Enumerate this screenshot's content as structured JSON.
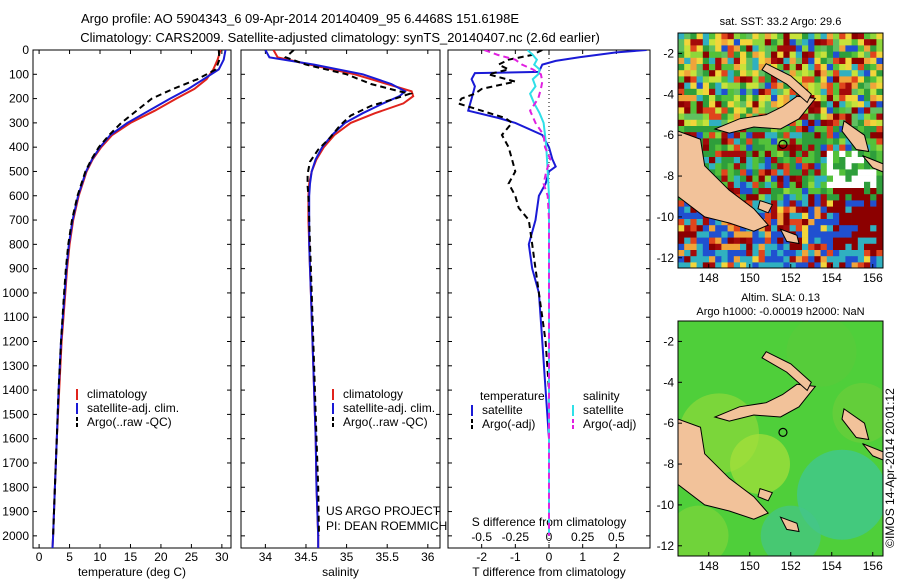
{
  "header": {
    "line1": "Argo profile: AO 5904343_6 09-Apr-2014 20140409_95 6.4468S 151.6198E",
    "line2": "Climatology: CARS2009. Satellite-adjusted climatology: synTS_20140407.nc (2.6d earlier)"
  },
  "colors": {
    "climatology": "#e0231c",
    "satellite": "#1a1ad6",
    "argo": "#000000",
    "sat_salinity": "#2fe0e8",
    "argo_salinity": "#e020e0",
    "land": "#f2c29a",
    "sst_map_bg": "#3fb04a",
    "sla_map_bg": "#4fcf3a"
  },
  "depth_axis": {
    "range": [
      0,
      2050
    ],
    "ticks": [
      0,
      100,
      200,
      300,
      400,
      500,
      600,
      700,
      800,
      900,
      1000,
      1100,
      1200,
      1300,
      1400,
      1500,
      1600,
      1700,
      1800,
      1900,
      2000
    ],
    "labels": [
      "0",
      "100",
      "200",
      "300",
      "400",
      "500",
      "600",
      "700",
      "800",
      "900",
      "1000",
      "1100",
      "1200",
      "1300",
      "1400",
      "1500",
      "1600",
      "1700",
      "1800",
      "1900",
      "2000"
    ]
  },
  "chart_data": [
    {
      "type": "line",
      "title": "",
      "xlabel": "temperature (deg C)",
      "ylabel": "",
      "xlim": [
        -1,
        31.5
      ],
      "ylim": [
        2050,
        0
      ],
      "xticks": [
        0,
        5,
        10,
        15,
        20,
        25,
        30
      ],
      "xticklabels": [
        "0",
        "5",
        "10",
        "15",
        "20",
        "25",
        "30"
      ],
      "legend": [
        "climatology",
        "satellite-adj. clim.",
        "Argo(..raw -QC)"
      ],
      "series": [
        {
          "name": "climatology",
          "depth": [
            0,
            40,
            80,
            120,
            160,
            200,
            250,
            300,
            350,
            400,
            450,
            500,
            600,
            700,
            800,
            900,
            1000,
            1200,
            1400,
            1600,
            1800,
            2000,
            2050
          ],
          "values": [
            29.8,
            29.3,
            28.6,
            27.5,
            25.5,
            22.5,
            19.0,
            15.0,
            12.0,
            10.2,
            8.8,
            7.8,
            6.5,
            5.6,
            5.0,
            4.6,
            4.3,
            3.7,
            3.3,
            2.9,
            2.6,
            2.3,
            2.2
          ]
        },
        {
          "name": "satellite-adj. clim.",
          "depth": [
            0,
            40,
            80,
            120,
            160,
            200,
            250,
            300,
            350,
            400,
            450,
            500,
            600,
            700,
            800,
            900,
            1000,
            1200,
            1400,
            1600,
            1800,
            2000,
            2050
          ],
          "values": [
            30.6,
            30.3,
            29.5,
            27.0,
            24.5,
            21.5,
            18.0,
            14.5,
            11.7,
            10.0,
            8.7,
            7.7,
            6.4,
            5.5,
            4.9,
            4.5,
            4.2,
            3.6,
            3.2,
            2.9,
            2.6,
            2.3,
            2.2
          ]
        },
        {
          "name": "Argo(..raw -QC)",
          "depth": [
            0,
            40,
            80,
            120,
            160,
            200,
            250,
            300,
            350,
            400,
            450,
            500,
            600,
            700,
            800,
            900,
            1000,
            1200,
            1400,
            1600,
            1800,
            2000
          ],
          "values": [
            29.5,
            29.6,
            29.0,
            26.0,
            22.0,
            18.5,
            16.0,
            13.5,
            11.5,
            9.8,
            8.6,
            7.6,
            6.3,
            5.4,
            4.8,
            4.4,
            4.1,
            3.6,
            3.2,
            2.9,
            2.6,
            2.3
          ]
        }
      ]
    },
    {
      "type": "line",
      "title": "",
      "xlabel": "salinity",
      "ylabel": "",
      "xlim": [
        33.7,
        36.15
      ],
      "ylim": [
        2050,
        0
      ],
      "xticks": [
        34,
        34.5,
        35,
        35.5,
        36
      ],
      "xticklabels": [
        "34",
        "34.5",
        "35",
        "35.5",
        "36"
      ],
      "legend": [
        "climatology",
        "satellite-adj. clim.",
        "Argo(..raw -QC)"
      ],
      "series": [
        {
          "name": "climatology",
          "depth": [
            0,
            30,
            60,
            100,
            140,
            170,
            190,
            220,
            260,
            300,
            350,
            400,
            450,
            500,
            550,
            600,
            700,
            800,
            900,
            1000,
            1200,
            1400,
            1600,
            1800,
            2000,
            2050
          ],
          "values": [
            34.1,
            34.15,
            34.55,
            35.1,
            35.5,
            35.8,
            35.82,
            35.7,
            35.35,
            35.05,
            34.85,
            34.72,
            34.63,
            34.57,
            34.54,
            34.53,
            34.53,
            34.54,
            34.55,
            34.56,
            34.58,
            34.6,
            34.62,
            34.63,
            34.65,
            34.65
          ]
        },
        {
          "name": "satellite-adj. clim.",
          "depth": [
            0,
            30,
            60,
            100,
            140,
            170,
            190,
            220,
            260,
            300,
            350,
            400,
            450,
            500,
            550,
            600,
            700,
            800,
            900,
            1000,
            1200,
            1400,
            1600,
            1800,
            2000,
            2050
          ],
          "values": [
            34.0,
            34.05,
            34.6,
            35.2,
            35.55,
            35.72,
            35.65,
            35.45,
            35.2,
            34.98,
            34.82,
            34.7,
            34.62,
            34.57,
            34.55,
            34.54,
            34.54,
            34.54,
            34.55,
            34.56,
            34.58,
            34.6,
            34.62,
            34.63,
            34.65,
            34.65
          ]
        },
        {
          "name": "Argo(..raw -QC)",
          "depth": [
            0,
            30,
            60,
            100,
            140,
            170,
            180,
            200,
            230,
            270,
            310,
            360,
            410,
            460,
            510,
            560,
            600,
            700,
            800,
            900,
            1000,
            1200,
            1400,
            1600,
            1800,
            2000
          ],
          "values": [
            34.35,
            34.25,
            34.5,
            35.0,
            35.3,
            35.65,
            35.78,
            35.6,
            35.3,
            35.05,
            34.92,
            34.8,
            34.65,
            34.55,
            34.52,
            34.52,
            34.53,
            34.54,
            34.55,
            34.56,
            34.57,
            34.59,
            34.61,
            34.63,
            34.65,
            34.66
          ]
        }
      ]
    },
    {
      "type": "line",
      "title": "S difference from climatology",
      "xlabel": "T difference from climatology",
      "ylabel": "",
      "xlim": [
        -3.0,
        3.0
      ],
      "ylim": [
        2050,
        0
      ],
      "xticks": [
        -2,
        -1,
        0,
        1,
        2
      ],
      "xticklabels": [
        "-2",
        "-1",
        "0",
        "1",
        "2"
      ],
      "top_axis": {
        "xlim": [
          -0.75,
          0.75
        ],
        "ticks": [
          -0.5,
          -0.25,
          0,
          0.25,
          0.5
        ],
        "labels": [
          "-0.5",
          "-0.25",
          "0",
          "0.25",
          "0.5"
        ]
      },
      "legend": [
        "satellite",
        "Argo(-adj)",
        "satellite",
        "Argo(-adj)"
      ],
      "legend_headers": [
        "temperature",
        "salinity"
      ],
      "series": [
        {
          "name": "temperature satellite",
          "axis": "T",
          "depth": [
            0,
            10,
            30,
            45,
            60,
            90,
            95,
            120,
            150,
            200,
            250,
            280,
            300,
            350,
            400,
            450,
            480,
            500,
            550,
            600,
            700,
            800,
            900,
            1000,
            1200,
            1400,
            1600,
            1800,
            2000
          ],
          "values": [
            2.9,
            2.0,
            0.9,
            0.2,
            -0.2,
            -0.3,
            -2.2,
            -2.3,
            -2.2,
            -2.3,
            -2.4,
            -1.5,
            -1.0,
            -0.2,
            0.0,
            0.1,
            0.2,
            0.0,
            -0.1,
            -0.3,
            -0.4,
            -0.6,
            -0.5,
            -0.3,
            -0.2,
            -0.1,
            0.0,
            0.0,
            0.0
          ]
        },
        {
          "name": "temperature Argo(-adj)",
          "axis": "T",
          "depth": [
            0,
            20,
            40,
            60,
            80,
            100,
            130,
            160,
            180,
            200,
            220,
            250,
            280,
            300,
            350,
            400,
            450,
            500,
            550,
            600,
            650,
            700,
            800,
            900,
            1000,
            1100,
            1200,
            1400,
            1600,
            1800,
            2000
          ],
          "values": [
            -0.2,
            -0.5,
            -1.2,
            -1.5,
            -1.2,
            -1.8,
            -1.0,
            -2.0,
            -2.2,
            -2.6,
            -2.7,
            -2.0,
            -1.3,
            -1.1,
            -1.4,
            -1.2,
            -1.1,
            -1.0,
            -1.2,
            -1.0,
            -0.9,
            -0.6,
            -0.5,
            -0.4,
            -0.3,
            -0.2,
            -0.1,
            0.0,
            0.0,
            0.0,
            0.0
          ]
        },
        {
          "name": "salinity satellite",
          "axis": "S",
          "depth": [
            0,
            20,
            40,
            60,
            80,
            100,
            120,
            150,
            180,
            220,
            260,
            300,
            350,
            400,
            500,
            600,
            700,
            800,
            1000,
            1200,
            1400,
            1600,
            1800,
            2000
          ],
          "values": [
            -0.16,
            -0.12,
            -0.09,
            -0.11,
            -0.07,
            -0.08,
            -0.12,
            -0.1,
            -0.14,
            -0.11,
            -0.07,
            -0.04,
            -0.03,
            -0.02,
            -0.01,
            0.0,
            0.0,
            0.0,
            0.0,
            0.0,
            0.0,
            0.0,
            0.0,
            0.0
          ]
        },
        {
          "name": "salinity Argo(-adj)",
          "axis": "S",
          "depth": [
            0,
            20,
            40,
            60,
            80,
            100,
            130,
            160,
            200,
            250,
            300,
            350,
            400,
            450,
            500,
            550,
            600,
            700,
            800,
            1000,
            1200,
            1400,
            1600,
            1800,
            2000
          ],
          "values": [
            -0.48,
            -0.38,
            -0.25,
            -0.2,
            -0.12,
            -0.06,
            -0.05,
            -0.06,
            -0.08,
            -0.14,
            -0.1,
            -0.04,
            -0.03,
            0.01,
            -0.02,
            -0.04,
            -0.01,
            0.0,
            0.0,
            0.0,
            0.0,
            0.0,
            0.0,
            0.0,
            0.0
          ]
        }
      ]
    },
    {
      "type": "heatmap",
      "title": "sat. SST: 33.2  Argo: 29.6",
      "xlim": [
        146.5,
        156.5
      ],
      "ylim": [
        -12.5,
        -1.0
      ],
      "xticks": [
        148,
        150,
        152,
        154,
        156
      ],
      "xticklabels": [
        "148",
        "150",
        "152",
        "154",
        "156"
      ],
      "yticks": [
        -2,
        -4,
        -6,
        -8,
        -10,
        -12
      ],
      "yticklabels": [
        "-2",
        "-4",
        "-6",
        "-8",
        "-10",
        "-12"
      ],
      "float_position": [
        151.62,
        -6.45
      ]
    },
    {
      "type": "heatmap",
      "title": "Altim. SLA: 0.13",
      "subtitle": "Argo h1000: -0.00019 h2000: NaN",
      "xlim": [
        146.5,
        156.5
      ],
      "ylim": [
        -12.5,
        -1.0
      ],
      "xticks": [
        148,
        150,
        152,
        154,
        156
      ],
      "xticklabels": [
        "148",
        "150",
        "152",
        "154",
        "156"
      ],
      "yticks": [
        -2,
        -4,
        -6,
        -8,
        -10,
        -12
      ],
      "yticklabels": [
        "-2",
        "-4",
        "-6",
        "-8",
        "-10",
        "-12"
      ],
      "float_position": [
        151.62,
        -6.45
      ]
    }
  ],
  "credits": {
    "project": "US ARGO PROJECT",
    "pi": "PI: DEAN ROEMMICH",
    "stamp": "©IMOS 14-Apr-2014 20:01:12"
  }
}
